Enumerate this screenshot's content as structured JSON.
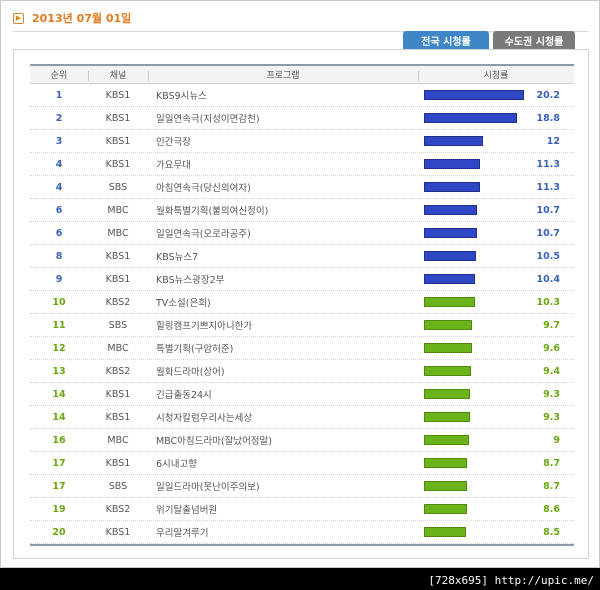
{
  "date": "2013년 07월 01일",
  "tabs": {
    "nation": "전국 시청률",
    "capital": "수도권 시청률"
  },
  "headers": {
    "rank": "순위",
    "channel": "채널",
    "program": "프로그램",
    "rating": "시청률"
  },
  "colors": {
    "blue_bar": "#2f47c4",
    "green_bar": "#6bb31b",
    "date": "#e07a1f"
  },
  "rows": [
    {
      "rank": "1",
      "channel": "KBS1",
      "program": "KBS9시뉴스",
      "rating": 20.2,
      "rating_label": "20.2",
      "color": "blue"
    },
    {
      "rank": "2",
      "channel": "KBS1",
      "program": "일일연속극(지성이면감천)",
      "rating": 18.8,
      "rating_label": "18.8",
      "color": "blue"
    },
    {
      "rank": "3",
      "channel": "KBS1",
      "program": "인간극장",
      "rating": 12,
      "rating_label": "12",
      "color": "blue"
    },
    {
      "rank": "4",
      "channel": "KBS1",
      "program": "가요무대",
      "rating": 11.3,
      "rating_label": "11.3",
      "color": "blue"
    },
    {
      "rank": "4",
      "channel": "SBS",
      "program": "아침연속극(당신의여자)",
      "rating": 11.3,
      "rating_label": "11.3",
      "color": "blue"
    },
    {
      "rank": "6",
      "channel": "MBC",
      "program": "월화특별기획(불의여신정이)",
      "rating": 10.7,
      "rating_label": "10.7",
      "color": "blue"
    },
    {
      "rank": "6",
      "channel": "MBC",
      "program": "일일연속극(오로라공주)",
      "rating": 10.7,
      "rating_label": "10.7",
      "color": "blue"
    },
    {
      "rank": "8",
      "channel": "KBS1",
      "program": "KBS뉴스7",
      "rating": 10.5,
      "rating_label": "10.5",
      "color": "blue"
    },
    {
      "rank": "9",
      "channel": "KBS1",
      "program": "KBS뉴스광장2부",
      "rating": 10.4,
      "rating_label": "10.4",
      "color": "blue"
    },
    {
      "rank": "10",
      "channel": "KBS2",
      "program": "TV소설(은희)",
      "rating": 10.3,
      "rating_label": "10.3",
      "color": "green"
    },
    {
      "rank": "11",
      "channel": "SBS",
      "program": "힐링캠프기쁘지아니한가",
      "rating": 9.7,
      "rating_label": "9.7",
      "color": "green"
    },
    {
      "rank": "12",
      "channel": "MBC",
      "program": "특별기획(구암허준)",
      "rating": 9.6,
      "rating_label": "9.6",
      "color": "green"
    },
    {
      "rank": "13",
      "channel": "KBS2",
      "program": "월화드라마(상어)",
      "rating": 9.4,
      "rating_label": "9.4",
      "color": "green"
    },
    {
      "rank": "14",
      "channel": "KBS1",
      "program": "긴급출동24시",
      "rating": 9.3,
      "rating_label": "9.3",
      "color": "green"
    },
    {
      "rank": "14",
      "channel": "KBS1",
      "program": "시청자칼럼우리사는세상",
      "rating": 9.3,
      "rating_label": "9.3",
      "color": "green"
    },
    {
      "rank": "16",
      "channel": "MBC",
      "program": "MBC아침드라마(잘났어정말)",
      "rating": 9,
      "rating_label": "9",
      "color": "green"
    },
    {
      "rank": "17",
      "channel": "KBS1",
      "program": "6시내고향",
      "rating": 8.7,
      "rating_label": "8.7",
      "color": "green"
    },
    {
      "rank": "17",
      "channel": "SBS",
      "program": "일일드라마(못난이주의보)",
      "rating": 8.7,
      "rating_label": "8.7",
      "color": "green"
    },
    {
      "rank": "19",
      "channel": "KBS2",
      "program": "위기탈출넘버원",
      "rating": 8.6,
      "rating_label": "8.6",
      "color": "green"
    },
    {
      "rank": "20",
      "channel": "KBS1",
      "program": "우리말겨루기",
      "rating": 8.5,
      "rating_label": "8.5",
      "color": "green"
    }
  ],
  "watermark": "[728x695] http://upic.me/"
}
